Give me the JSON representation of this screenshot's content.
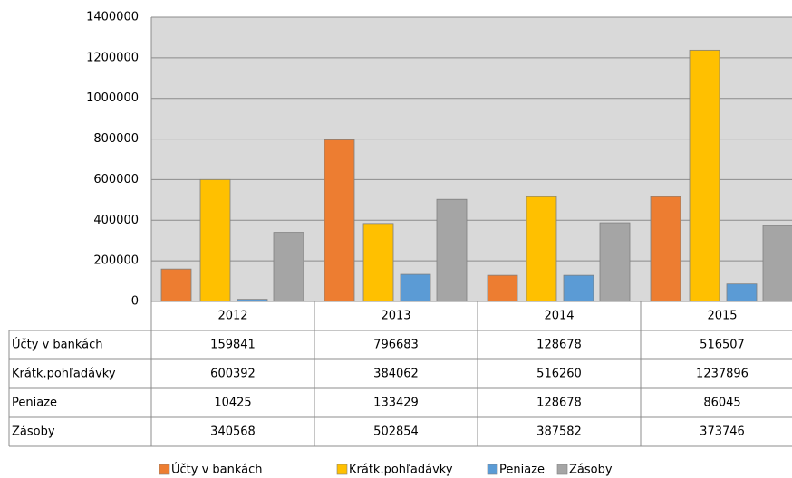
{
  "chart_data": {
    "type": "bar",
    "categories": [
      "2012",
      "2013",
      "2014",
      "2015"
    ],
    "series": [
      {
        "name": "Účty v bankách",
        "color": "#ed7d31",
        "values": [
          159841,
          796683,
          128678,
          516507
        ]
      },
      {
        "name": "Krátk.pohľadávky",
        "color": "#ffc000",
        "values": [
          600392,
          384062,
          516260,
          1237896
        ]
      },
      {
        "name": "Peniaze",
        "color": "#5b9bd5",
        "values": [
          10425,
          133429,
          128678,
          86045
        ]
      },
      {
        "name": "Zásoby",
        "color": "#a5a5a5",
        "values": [
          340568,
          502854,
          387582,
          373746
        ]
      }
    ],
    "ylim": [
      0,
      1400000
    ],
    "yticks": [
      0,
      200000,
      400000,
      600000,
      800000,
      1000000,
      1200000,
      1400000
    ],
    "grid": true,
    "legend": "bottom",
    "data_table": true
  }
}
